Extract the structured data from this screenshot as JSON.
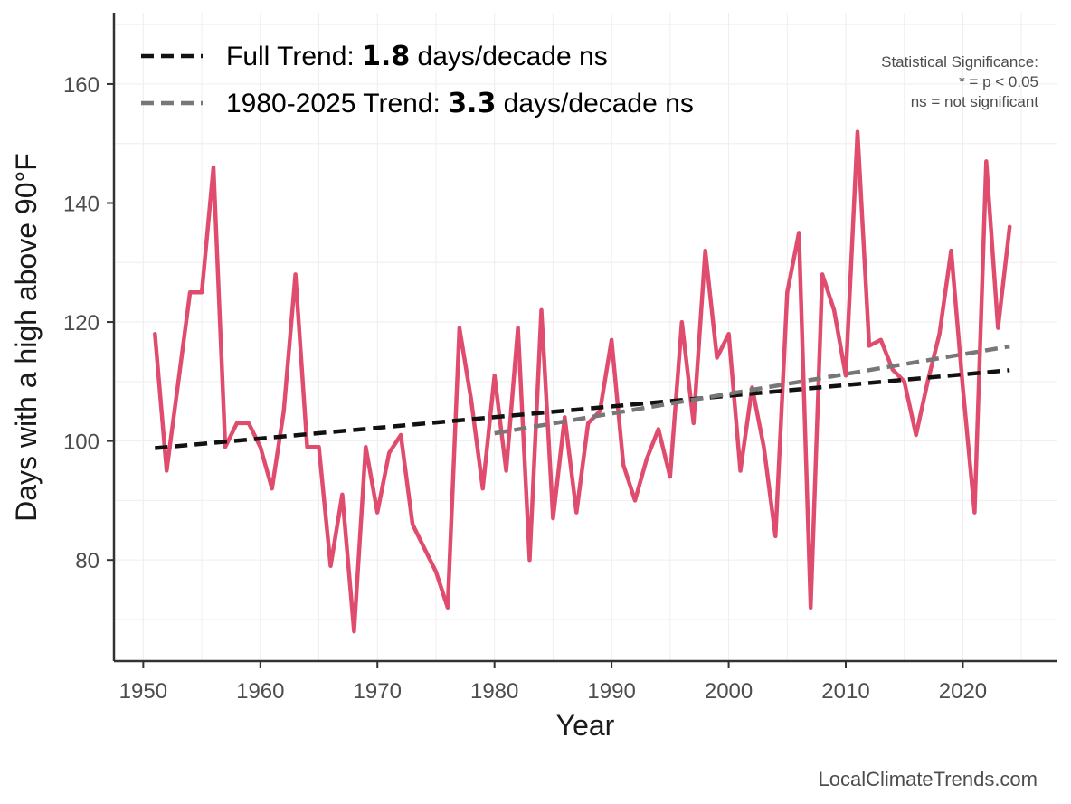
{
  "chart_data": {
    "type": "line",
    "xlabel": "Year",
    "ylabel": "Days with a high above 90°F",
    "xlim": [
      1947.5,
      2028
    ],
    "ylim": [
      63,
      172
    ],
    "x_ticks": [
      1950,
      1960,
      1970,
      1980,
      1990,
      2000,
      2010,
      2020
    ],
    "y_ticks": [
      80,
      100,
      120,
      140,
      160
    ],
    "grid": true,
    "series": [
      {
        "name": "Days above 90°F",
        "color": "#e04c6e",
        "x": [
          1951,
          1952,
          1953,
          1954,
          1955,
          1956,
          1957,
          1958,
          1959,
          1960,
          1961,
          1962,
          1963,
          1964,
          1965,
          1966,
          1967,
          1968,
          1969,
          1970,
          1971,
          1972,
          1973,
          1974,
          1975,
          1976,
          1977,
          1978,
          1979,
          1980,
          1981,
          1982,
          1983,
          1984,
          1985,
          1986,
          1987,
          1988,
          1989,
          1990,
          1991,
          1992,
          1993,
          1994,
          1995,
          1996,
          1997,
          1998,
          1999,
          2000,
          2001,
          2002,
          2003,
          2004,
          2005,
          2006,
          2007,
          2008,
          2009,
          2010,
          2011,
          2012,
          2013,
          2014,
          2015,
          2016,
          2017,
          2018,
          2019,
          2020,
          2021,
          2022,
          2023,
          2024
        ],
        "values": [
          118,
          95,
          110,
          125,
          125,
          146,
          99,
          103,
          103,
          99,
          92,
          105,
          128,
          99,
          99,
          79,
          91,
          68,
          99,
          88,
          98,
          101,
          86,
          82,
          78,
          72,
          119,
          107,
          92,
          111,
          95,
          119,
          80,
          122,
          87,
          104,
          88,
          103,
          105,
          117,
          96,
          90,
          97,
          102,
          94,
          120,
          103,
          132,
          114,
          118,
          95,
          109,
          99,
          84,
          125,
          135,
          72,
          128,
          122,
          111,
          152,
          116,
          117,
          112,
          110,
          101,
          110,
          118,
          132,
          109,
          88,
          147,
          119,
          136
        ]
      },
      {
        "name": "Full Trend",
        "color": "#111111",
        "dash": true,
        "x": [
          1951,
          2024
        ],
        "values": [
          98.8,
          111.9
        ]
      },
      {
        "name": "1980-2025 Trend",
        "color": "#777777",
        "dash": true,
        "x": [
          1980,
          2024
        ],
        "values": [
          101.3,
          115.9
        ]
      }
    ],
    "legend": [
      {
        "prefix": "Full Trend: ",
        "value": "1.8",
        "suffix": " days/decade ns",
        "color": "#111111"
      },
      {
        "prefix": "1980-2025 Trend: ",
        "value": "3.3",
        "suffix": " days/decade ns",
        "color": "#777777"
      }
    ],
    "legend_position": "top-left",
    "annotations": [
      "Statistical Significance:",
      "* = p < 0.05",
      "ns = not significant"
    ]
  },
  "credit": "LocalClimateTrends.com"
}
